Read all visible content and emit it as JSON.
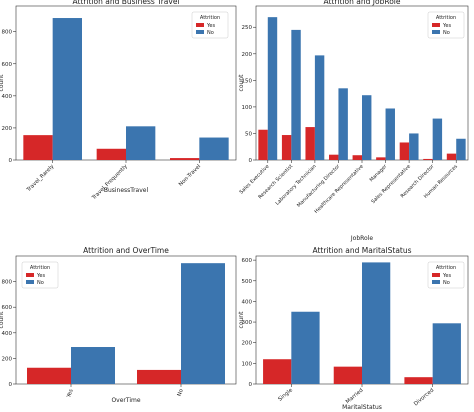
{
  "colors": {
    "yes": "#d62728",
    "no": "#3b75af",
    "axis": "#333333",
    "grid": "#dddddd"
  },
  "chart_data": [
    {
      "type": "bar",
      "title": "Attrition and Business Travel",
      "xlabel": "BusinessTravel",
      "ylabel": "count",
      "categories": [
        "Travel_Rarely",
        "Travel_Frequently",
        "Non-Travel"
      ],
      "series": [
        {
          "name": "Yes",
          "values": [
            155,
            70,
            12
          ]
        },
        {
          "name": "No",
          "values": [
            885,
            210,
            140
          ]
        }
      ],
      "ylim": [
        0,
        960
      ],
      "yticks": [
        0,
        200,
        400,
        600,
        800
      ],
      "legend": {
        "title": "Attrition",
        "position": "top-right"
      },
      "grid": false
    },
    {
      "type": "bar",
      "title": "Attrition and JobRole",
      "xlabel": "JobRole",
      "ylabel": "count",
      "categories": [
        "Sales Executive",
        "Research Scientist",
        "Laboratory Technician",
        "Manufacturing Director",
        "Healthcare Representative",
        "Manager",
        "Sales Representative",
        "Research Director",
        "Human Resources"
      ],
      "series": [
        {
          "name": "Yes",
          "values": [
            57,
            47,
            62,
            10,
            9,
            5,
            33,
            2,
            12
          ]
        },
        {
          "name": "No",
          "values": [
            269,
            245,
            197,
            135,
            122,
            97,
            50,
            78,
            40
          ]
        }
      ],
      "ylim": [
        0,
        290
      ],
      "yticks": [
        0,
        50,
        100,
        150,
        200,
        250
      ],
      "legend": {
        "title": "Attrition",
        "position": "top-right"
      },
      "grid": false
    },
    {
      "type": "bar",
      "title": "Attrition and OverTime",
      "xlabel": "OverTime",
      "ylabel": "count",
      "categories": [
        "Yes",
        "No"
      ],
      "series": [
        {
          "name": "Yes",
          "values": [
            127,
            110
          ]
        },
        {
          "name": "No",
          "values": [
            289,
            944
          ]
        }
      ],
      "ylim": [
        0,
        1000
      ],
      "yticks": [
        0,
        200,
        400,
        600,
        800
      ],
      "legend": {
        "title": "Attrition",
        "position": "top-left"
      },
      "grid": false
    },
    {
      "type": "bar",
      "title": "Attrition and MaritalStatus",
      "xlabel": "MaritalStatus",
      "ylabel": "count",
      "categories": [
        "Single",
        "Married",
        "Divorced"
      ],
      "series": [
        {
          "name": "Yes",
          "values": [
            120,
            84,
            33
          ]
        },
        {
          "name": "No",
          "values": [
            350,
            589,
            294
          ]
        }
      ],
      "ylim": [
        0,
        620
      ],
      "yticks": [
        0,
        100,
        200,
        300,
        400,
        500,
        600
      ],
      "legend": {
        "title": "Attrition",
        "position": "top-right"
      },
      "grid": false
    }
  ]
}
